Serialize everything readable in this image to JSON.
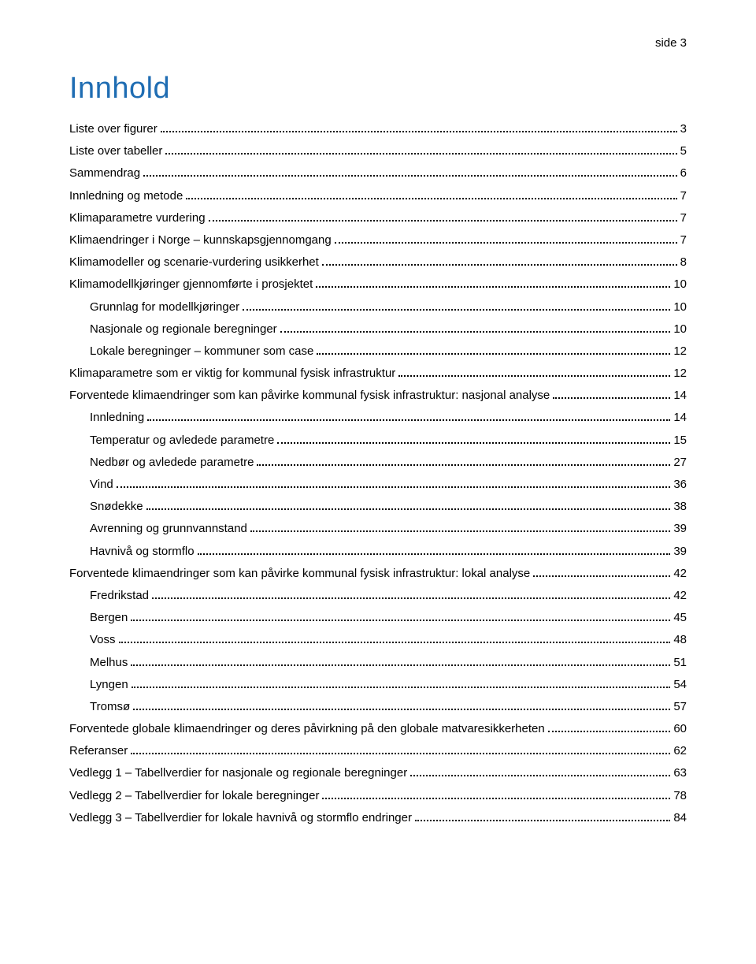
{
  "header": {
    "text": "side 3"
  },
  "title": "Innhold",
  "toc": [
    {
      "level": 1,
      "label": "Liste over figurer",
      "page": "3"
    },
    {
      "level": 1,
      "label": "Liste over tabeller",
      "page": "5"
    },
    {
      "level": 1,
      "label": "Sammendrag",
      "page": "6"
    },
    {
      "level": 1,
      "label": "Innledning og metode",
      "page": "7"
    },
    {
      "level": 1,
      "label": "Klimaparametre vurdering",
      "page": "7"
    },
    {
      "level": 1,
      "label": "Klimaendringer i Norge – kunnskapsgjennomgang",
      "page": "7"
    },
    {
      "level": 1,
      "label": "Klimamodeller og scenarie-vurdering usikkerhet",
      "page": "8"
    },
    {
      "level": 1,
      "label": "Klimamodellkjøringer gjennomførte i prosjektet",
      "page": "10"
    },
    {
      "level": 2,
      "label": "Grunnlag for modellkjøringer",
      "page": "10"
    },
    {
      "level": 2,
      "label": "Nasjonale og regionale beregninger",
      "page": "10"
    },
    {
      "level": 2,
      "label": "Lokale beregninger – kommuner som case",
      "page": "12"
    },
    {
      "level": 1,
      "label": "Klimaparametre som er viktig for kommunal fysisk infrastruktur",
      "page": "12"
    },
    {
      "level": 1,
      "label": "Forventede klimaendringer som kan påvirke kommunal fysisk infrastruktur: nasjonal analyse",
      "page": "14"
    },
    {
      "level": 2,
      "label": "Innledning",
      "page": "14"
    },
    {
      "level": 2,
      "label": "Temperatur og avledede parametre",
      "page": "15"
    },
    {
      "level": 2,
      "label": "Nedbør og avledede parametre",
      "page": "27"
    },
    {
      "level": 2,
      "label": "Vind",
      "page": "36"
    },
    {
      "level": 2,
      "label": "Snødekke",
      "page": "38"
    },
    {
      "level": 2,
      "label": "Avrenning og grunnvannstand",
      "page": "39"
    },
    {
      "level": 2,
      "label": "Havnivå og stormflo",
      "page": "39"
    },
    {
      "level": 1,
      "label": "Forventede klimaendringer som kan påvirke kommunal fysisk infrastruktur: lokal analyse",
      "page": "42"
    },
    {
      "level": 2,
      "label": "Fredrikstad",
      "page": "42"
    },
    {
      "level": 2,
      "label": "Bergen",
      "page": "45"
    },
    {
      "level": 2,
      "label": "Voss",
      "page": "48"
    },
    {
      "level": 2,
      "label": "Melhus",
      "page": "51"
    },
    {
      "level": 2,
      "label": "Lyngen",
      "page": "54"
    },
    {
      "level": 2,
      "label": "Tromsø",
      "page": "57"
    },
    {
      "level": 1,
      "label": "Forventede globale klimaendringer og deres påvirkning på den globale matvaresikkerheten",
      "page": "60"
    },
    {
      "level": 1,
      "label": "Referanser",
      "page": "62"
    },
    {
      "level": 1,
      "label": "Vedlegg 1 – Tabellverdier for nasjonale og regionale beregninger",
      "page": "63"
    },
    {
      "level": 1,
      "label": "Vedlegg 2 – Tabellverdier for lokale beregninger",
      "page": "78"
    },
    {
      "level": 1,
      "label": "Vedlegg 3 – Tabellverdier for lokale havnivå og stormflo endringer",
      "page": "84"
    }
  ]
}
